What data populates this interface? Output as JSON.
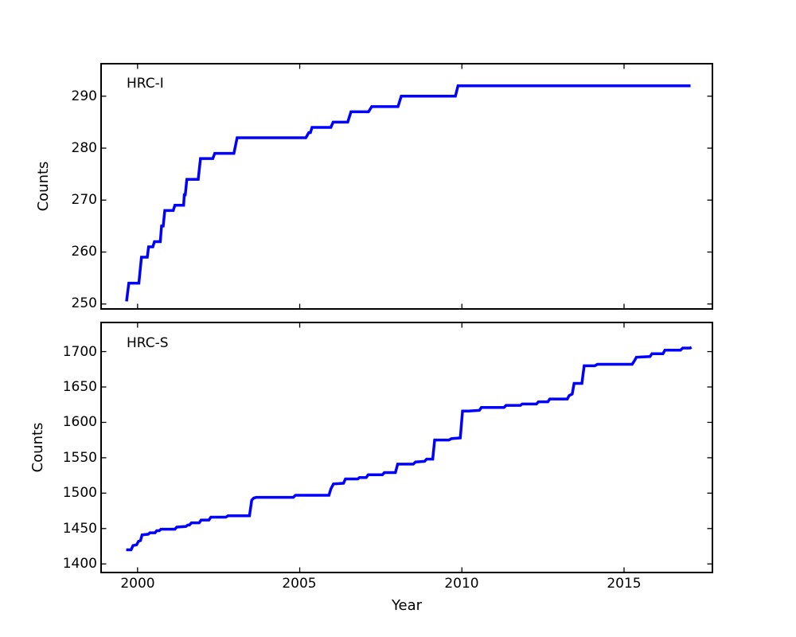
{
  "figure": {
    "background": "#ffffff",
    "axis_color": "#000000",
    "xlabel": "Year"
  },
  "chart_data": [
    {
      "type": "line",
      "title": "HRC-I",
      "ylabel": "Counts",
      "xlabel": "",
      "legend": "none",
      "grid": "off",
      "line_color": "#0000ff",
      "line_width": 3.5,
      "xlim": [
        1998.9,
        2017.7
      ],
      "ylim": [
        249.2,
        296.1
      ],
      "xticks": [
        2000,
        2005,
        2010,
        2015
      ],
      "yticks": [
        250,
        260,
        270,
        280,
        290
      ],
      "points": [
        [
          1999.66,
          250.5
        ],
        [
          1999.73,
          254
        ],
        [
          2000.04,
          254
        ],
        [
          2000.12,
          259
        ],
        [
          2000.3,
          259
        ],
        [
          2000.34,
          261
        ],
        [
          2000.47,
          261
        ],
        [
          2000.52,
          262
        ],
        [
          2000.7,
          262
        ],
        [
          2000.74,
          265
        ],
        [
          2000.79,
          265
        ],
        [
          2000.84,
          268
        ],
        [
          2001.1,
          268
        ],
        [
          2001.15,
          269
        ],
        [
          2001.42,
          269
        ],
        [
          2001.44,
          271
        ],
        [
          2001.47,
          271
        ],
        [
          2001.52,
          274
        ],
        [
          2001.87,
          274
        ],
        [
          2001.94,
          278
        ],
        [
          2002.32,
          278
        ],
        [
          2002.38,
          279
        ],
        [
          2002.97,
          279
        ],
        [
          2003.07,
          282
        ],
        [
          2005.19,
          282
        ],
        [
          2005.28,
          283
        ],
        [
          2005.33,
          283
        ],
        [
          2005.38,
          284
        ],
        [
          2005.96,
          284
        ],
        [
          2006.03,
          285
        ],
        [
          2006.48,
          285
        ],
        [
          2006.58,
          287
        ],
        [
          2007.12,
          287
        ],
        [
          2007.22,
          288
        ],
        [
          2008.03,
          288
        ],
        [
          2008.13,
          290
        ],
        [
          2009.8,
          290
        ],
        [
          2009.88,
          292
        ],
        [
          2017.05,
          292
        ]
      ]
    },
    {
      "type": "line",
      "title": "HRC-S",
      "ylabel": "Counts",
      "xlabel": "Year",
      "legend": "none",
      "grid": "off",
      "line_color": "#0000ff",
      "line_width": 3.5,
      "xlim": [
        1998.9,
        2017.7
      ],
      "ylim": [
        1389,
        1740
      ],
      "xticks": [
        2000,
        2005,
        2010,
        2015
      ],
      "yticks": [
        1400,
        1450,
        1500,
        1550,
        1600,
        1650,
        1700
      ],
      "points": [
        [
          1999.65,
          1420
        ],
        [
          1999.8,
          1420
        ],
        [
          1999.86,
          1426
        ],
        [
          1999.97,
          1427
        ],
        [
          2000.03,
          1432
        ],
        [
          2000.09,
          1433
        ],
        [
          2000.14,
          1441
        ],
        [
          2000.33,
          1442
        ],
        [
          2000.38,
          1444
        ],
        [
          2000.54,
          1444
        ],
        [
          2000.59,
          1447
        ],
        [
          2000.67,
          1447
        ],
        [
          2000.72,
          1449
        ],
        [
          2001.15,
          1449
        ],
        [
          2001.21,
          1452
        ],
        [
          2001.49,
          1453
        ],
        [
          2001.55,
          1455
        ],
        [
          2001.6,
          1455
        ],
        [
          2001.66,
          1458
        ],
        [
          2001.9,
          1458
        ],
        [
          2001.96,
          1462
        ],
        [
          2002.2,
          1462
        ],
        [
          2002.26,
          1466
        ],
        [
          2002.72,
          1466
        ],
        [
          2002.79,
          1468
        ],
        [
          2003.45,
          1468
        ],
        [
          2003.52,
          1490
        ],
        [
          2003.58,
          1493
        ],
        [
          2003.66,
          1494
        ],
        [
          2004.8,
          1494
        ],
        [
          2004.87,
          1497
        ],
        [
          2005.9,
          1497
        ],
        [
          2005.96,
          1506
        ],
        [
          2006.04,
          1513
        ],
        [
          2006.35,
          1514
        ],
        [
          2006.41,
          1520
        ],
        [
          2006.79,
          1520
        ],
        [
          2006.84,
          1522
        ],
        [
          2007.05,
          1522
        ],
        [
          2007.11,
          1526
        ],
        [
          2007.55,
          1526
        ],
        [
          2007.61,
          1529
        ],
        [
          2007.95,
          1529
        ],
        [
          2008.02,
          1541
        ],
        [
          2008.5,
          1541
        ],
        [
          2008.57,
          1544
        ],
        [
          2008.85,
          1545
        ],
        [
          2008.91,
          1548
        ],
        [
          2009.1,
          1548
        ],
        [
          2009.16,
          1575
        ],
        [
          2009.6,
          1575
        ],
        [
          2009.68,
          1577
        ],
        [
          2009.95,
          1578
        ],
        [
          2010.02,
          1616
        ],
        [
          2010.2,
          1616
        ],
        [
          2010.54,
          1617
        ],
        [
          2010.6,
          1621
        ],
        [
          2011.3,
          1621
        ],
        [
          2011.36,
          1624
        ],
        [
          2011.8,
          1624
        ],
        [
          2011.86,
          1626
        ],
        [
          2012.3,
          1626
        ],
        [
          2012.36,
          1629
        ],
        [
          2012.65,
          1629
        ],
        [
          2012.71,
          1633
        ],
        [
          2013.25,
          1633
        ],
        [
          2013.31,
          1638
        ],
        [
          2013.4,
          1640
        ],
        [
          2013.46,
          1655
        ],
        [
          2013.7,
          1655
        ],
        [
          2013.77,
          1680
        ],
        [
          2014.1,
          1680
        ],
        [
          2014.18,
          1682
        ],
        [
          2015.25,
          1682
        ],
        [
          2015.32,
          1687
        ],
        [
          2015.38,
          1692
        ],
        [
          2015.8,
          1693
        ],
        [
          2015.86,
          1697
        ],
        [
          2016.2,
          1697
        ],
        [
          2016.26,
          1702
        ],
        [
          2016.74,
          1702
        ],
        [
          2016.81,
          1705
        ],
        [
          2017.03,
          1705
        ],
        [
          2017.08,
          1706
        ]
      ]
    }
  ]
}
